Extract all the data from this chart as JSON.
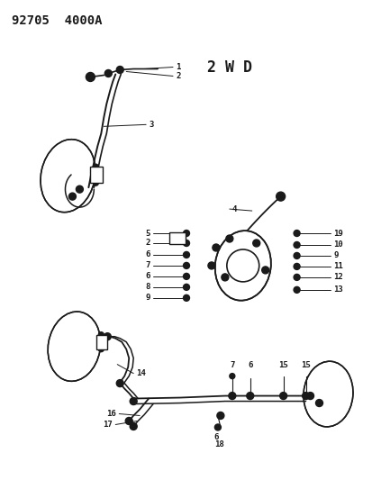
{
  "bg_color": "#ffffff",
  "lc": "#1a1a1a",
  "header": "92705  4000A",
  "label_2wd": "2 W D",
  "fs": 6.5,
  "fs_header": 10,
  "fs_2wd": 13
}
